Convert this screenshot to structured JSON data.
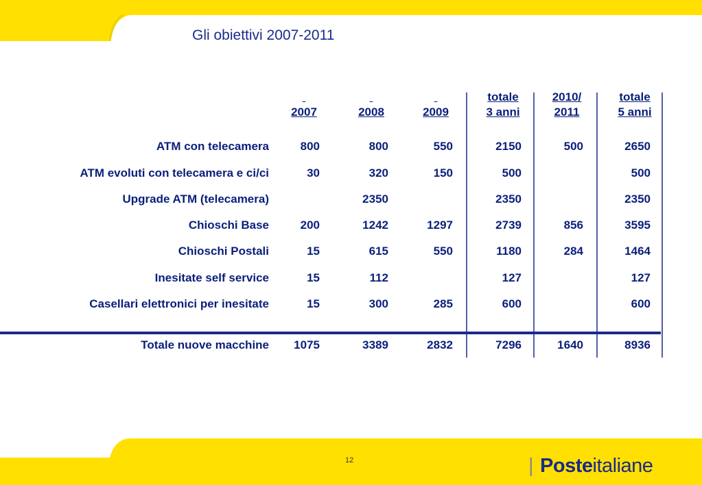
{
  "title": "Gli obiettivi 2007-2011",
  "page_number": "12",
  "logo": {
    "bold": "Poste",
    "regular": "italiane",
    "separator": "|"
  },
  "columns": [
    {
      "line1": "",
      "line2": "2007"
    },
    {
      "line1": "",
      "line2": "2008"
    },
    {
      "line1": "",
      "line2": "2009"
    },
    {
      "line1": "totale",
      "line2": "3 anni"
    },
    {
      "line1": "2010/",
      "line2": "2011"
    },
    {
      "line1": "totale",
      "line2": "5 anni"
    }
  ],
  "rows": [
    {
      "label": "ATM con telecamera",
      "values": [
        "800",
        "800",
        "550",
        "2150",
        "500",
        "2650"
      ]
    },
    {
      "label": "ATM evoluti con telecamera e ci/ci",
      "values": [
        "30",
        "320",
        "150",
        "500",
        "",
        "500"
      ]
    },
    {
      "label": "Upgrade ATM (telecamera)",
      "values": [
        "",
        "2350",
        "",
        "2350",
        "",
        "2350"
      ]
    },
    {
      "label": "Chioschi Base",
      "values": [
        "200",
        "1242",
        "1297",
        "2739",
        "856",
        "3595"
      ]
    },
    {
      "label": "Chioschi Postali",
      "values": [
        "15",
        "615",
        "550",
        "1180",
        "284",
        "1464"
      ]
    },
    {
      "label": "Inesitate self service",
      "values": [
        "15",
        "112",
        "",
        "127",
        "",
        "127"
      ]
    },
    {
      "label": "Casellari elettronici per inesitate",
      "values": [
        "15",
        "300",
        "285",
        "600",
        "",
        "600"
      ]
    }
  ],
  "total": {
    "label": "Totale nuove macchine",
    "values": [
      "1075",
      "3389",
      "2832",
      "7296",
      "1640",
      "8936"
    ]
  },
  "colors": {
    "accent_yellow": "#ffe000",
    "text_blue": "#0a1f7a"
  }
}
